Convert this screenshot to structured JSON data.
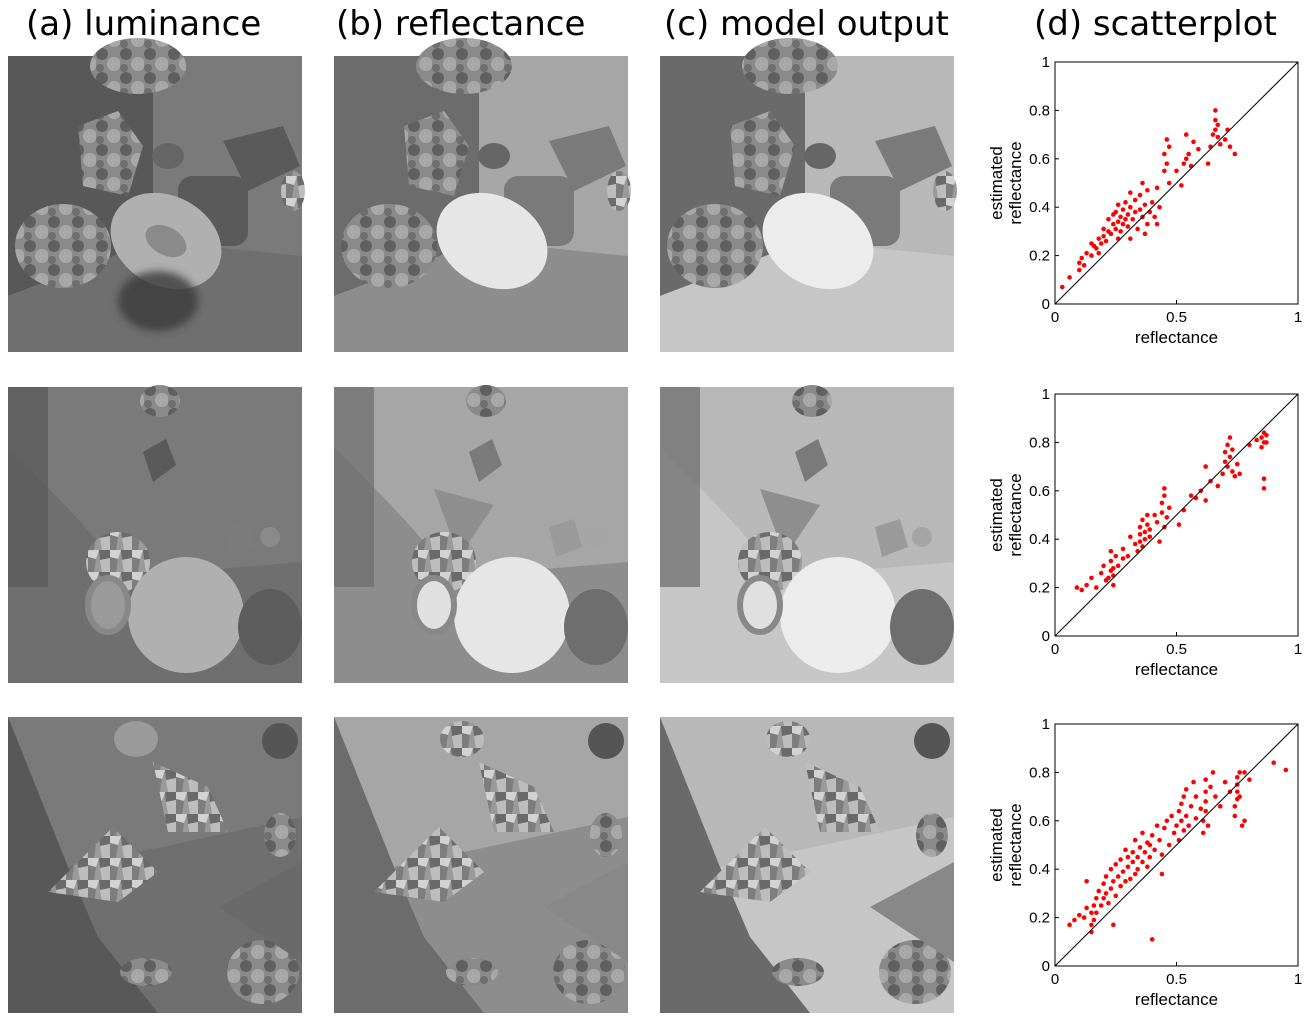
{
  "titles": {
    "a": "(a) luminance",
    "b": "(b) reflectance",
    "c": "(c) model output",
    "d": "(d) scatterplot"
  },
  "colors": {
    "points": "#ff0000",
    "identity_line": "#000000"
  },
  "chart_data": [
    {
      "type": "scatter",
      "xlabel": "reflectance",
      "ylabel": "estimated reflectance",
      "xlim": [
        0,
        1
      ],
      "ylim": [
        0,
        1
      ],
      "xticks": [
        "0",
        "0.5",
        "1"
      ],
      "yticks": [
        "0",
        "0.2",
        "0.4",
        "0.6",
        "0.8",
        "1"
      ],
      "reference_line": "y = x",
      "points": [
        [
          0.03,
          0.07
        ],
        [
          0.06,
          0.11
        ],
        [
          0.1,
          0.14
        ],
        [
          0.1,
          0.17
        ],
        [
          0.11,
          0.19
        ],
        [
          0.12,
          0.16
        ],
        [
          0.13,
          0.21
        ],
        [
          0.15,
          0.2
        ],
        [
          0.16,
          0.24
        ],
        [
          0.17,
          0.23
        ],
        [
          0.18,
          0.27
        ],
        [
          0.19,
          0.25
        ],
        [
          0.2,
          0.28
        ],
        [
          0.2,
          0.31
        ],
        [
          0.21,
          0.26
        ],
        [
          0.22,
          0.3
        ],
        [
          0.22,
          0.35
        ],
        [
          0.23,
          0.29
        ],
        [
          0.24,
          0.33
        ],
        [
          0.24,
          0.37
        ],
        [
          0.25,
          0.31
        ],
        [
          0.25,
          0.38
        ],
        [
          0.26,
          0.34
        ],
        [
          0.26,
          0.41
        ],
        [
          0.27,
          0.3
        ],
        [
          0.27,
          0.36
        ],
        [
          0.28,
          0.39
        ],
        [
          0.28,
          0.33
        ],
        [
          0.29,
          0.42
        ],
        [
          0.29,
          0.35
        ],
        [
          0.3,
          0.37
        ],
        [
          0.3,
          0.32
        ],
        [
          0.31,
          0.4
        ],
        [
          0.31,
          0.27
        ],
        [
          0.32,
          0.35
        ],
        [
          0.33,
          0.38
        ],
        [
          0.33,
          0.43
        ],
        [
          0.34,
          0.31
        ],
        [
          0.35,
          0.39
        ],
        [
          0.35,
          0.45
        ],
        [
          0.36,
          0.36
        ],
        [
          0.37,
          0.41
        ],
        [
          0.38,
          0.33
        ],
        [
          0.38,
          0.47
        ],
        [
          0.39,
          0.38
        ],
        [
          0.4,
          0.42
        ],
        [
          0.41,
          0.36
        ],
        [
          0.42,
          0.48
        ],
        [
          0.43,
          0.4
        ],
        [
          0.45,
          0.55
        ],
        [
          0.45,
          0.62
        ],
        [
          0.46,
          0.58
        ],
        [
          0.46,
          0.68
        ],
        [
          0.47,
          0.65
        ],
        [
          0.47,
          0.5
        ],
        [
          0.5,
          0.55
        ],
        [
          0.52,
          0.49
        ],
        [
          0.53,
          0.58
        ],
        [
          0.54,
          0.6
        ],
        [
          0.54,
          0.7
        ],
        [
          0.55,
          0.62
        ],
        [
          0.56,
          0.57
        ],
        [
          0.57,
          0.67
        ],
        [
          0.59,
          0.64
        ],
        [
          0.63,
          0.58
        ],
        [
          0.64,
          0.65
        ],
        [
          0.65,
          0.7
        ],
        [
          0.66,
          0.72
        ],
        [
          0.66,
          0.76
        ],
        [
          0.66,
          0.8
        ],
        [
          0.67,
          0.69
        ],
        [
          0.67,
          0.74
        ],
        [
          0.68,
          0.66
        ],
        [
          0.7,
          0.68
        ],
        [
          0.71,
          0.72
        ],
        [
          0.72,
          0.65
        ],
        [
          0.74,
          0.62
        ],
        [
          0.18,
          0.21
        ],
        [
          0.15,
          0.25
        ],
        [
          0.31,
          0.46
        ],
        [
          0.37,
          0.29
        ],
        [
          0.42,
          0.33
        ],
        [
          0.26,
          0.27
        ],
        [
          0.36,
          0.5
        ]
      ]
    },
    {
      "type": "scatter",
      "xlabel": "reflectance",
      "ylabel": "estimated reflectance",
      "xlim": [
        0,
        1
      ],
      "ylim": [
        0,
        1
      ],
      "xticks": [
        "0",
        "0.5",
        "1"
      ],
      "yticks": [
        "0",
        "0.2",
        "0.4",
        "0.6",
        "0.8",
        "1"
      ],
      "reference_line": "y = x",
      "points": [
        [
          0.09,
          0.2
        ],
        [
          0.11,
          0.19
        ],
        [
          0.13,
          0.21
        ],
        [
          0.15,
          0.24
        ],
        [
          0.17,
          0.2
        ],
        [
          0.19,
          0.26
        ],
        [
          0.2,
          0.29
        ],
        [
          0.21,
          0.23
        ],
        [
          0.22,
          0.24
        ],
        [
          0.23,
          0.27
        ],
        [
          0.23,
          0.31
        ],
        [
          0.23,
          0.35
        ],
        [
          0.24,
          0.21
        ],
        [
          0.24,
          0.25
        ],
        [
          0.24,
          0.28
        ],
        [
          0.25,
          0.33
        ],
        [
          0.26,
          0.29
        ],
        [
          0.28,
          0.36
        ],
        [
          0.3,
          0.33
        ],
        [
          0.31,
          0.41
        ],
        [
          0.33,
          0.38
        ],
        [
          0.34,
          0.35
        ],
        [
          0.35,
          0.39
        ],
        [
          0.35,
          0.42
        ],
        [
          0.35,
          0.45
        ],
        [
          0.36,
          0.37
        ],
        [
          0.36,
          0.48
        ],
        [
          0.37,
          0.4
        ],
        [
          0.37,
          0.43
        ],
        [
          0.38,
          0.46
        ],
        [
          0.38,
          0.5
        ],
        [
          0.39,
          0.41
        ],
        [
          0.39,
          0.44
        ],
        [
          0.42,
          0.47
        ],
        [
          0.43,
          0.39
        ],
        [
          0.44,
          0.51
        ],
        [
          0.44,
          0.55
        ],
        [
          0.45,
          0.45
        ],
        [
          0.45,
          0.58
        ],
        [
          0.45,
          0.61
        ],
        [
          0.46,
          0.49
        ],
        [
          0.47,
          0.53
        ],
        [
          0.51,
          0.46
        ],
        [
          0.53,
          0.52
        ],
        [
          0.56,
          0.58
        ],
        [
          0.58,
          0.57
        ],
        [
          0.6,
          0.6
        ],
        [
          0.62,
          0.56
        ],
        [
          0.64,
          0.64
        ],
        [
          0.67,
          0.62
        ],
        [
          0.69,
          0.67
        ],
        [
          0.7,
          0.72
        ],
        [
          0.7,
          0.76
        ],
        [
          0.71,
          0.7
        ],
        [
          0.71,
          0.79
        ],
        [
          0.72,
          0.74
        ],
        [
          0.72,
          0.82
        ],
        [
          0.73,
          0.68
        ],
        [
          0.73,
          0.77
        ],
        [
          0.74,
          0.66
        ],
        [
          0.75,
          0.71
        ],
        [
          0.76,
          0.67
        ],
        [
          0.8,
          0.79
        ],
        [
          0.83,
          0.81
        ],
        [
          0.85,
          0.78
        ],
        [
          0.85,
          0.82
        ],
        [
          0.86,
          0.8
        ],
        [
          0.86,
          0.84
        ],
        [
          0.86,
          0.65
        ],
        [
          0.86,
          0.61
        ],
        [
          0.87,
          0.83
        ],
        [
          0.87,
          0.8
        ],
        [
          0.62,
          0.7
        ],
        [
          0.28,
          0.32
        ],
        [
          0.41,
          0.5
        ]
      ]
    },
    {
      "type": "scatter",
      "xlabel": "reflectance",
      "ylabel": "estimated reflectance",
      "xlim": [
        0,
        1
      ],
      "ylim": [
        0,
        1
      ],
      "xticks": [
        "0",
        "0.5",
        "1"
      ],
      "yticks": [
        "0",
        "0.2",
        "0.4",
        "0.6",
        "0.8",
        "1"
      ],
      "reference_line": "y = x",
      "points": [
        [
          0.06,
          0.17
        ],
        [
          0.08,
          0.19
        ],
        [
          0.1,
          0.21
        ],
        [
          0.12,
          0.2
        ],
        [
          0.13,
          0.24
        ],
        [
          0.15,
          0.14
        ],
        [
          0.15,
          0.17
        ],
        [
          0.15,
          0.22
        ],
        [
          0.16,
          0.19
        ],
        [
          0.16,
          0.25
        ],
        [
          0.17,
          0.28
        ],
        [
          0.17,
          0.22
        ],
        [
          0.18,
          0.31
        ],
        [
          0.19,
          0.25
        ],
        [
          0.2,
          0.28
        ],
        [
          0.2,
          0.34
        ],
        [
          0.21,
          0.3
        ],
        [
          0.21,
          0.37
        ],
        [
          0.22,
          0.26
        ],
        [
          0.23,
          0.32
        ],
        [
          0.23,
          0.4
        ],
        [
          0.24,
          0.35
        ],
        [
          0.25,
          0.29
        ],
        [
          0.25,
          0.42
        ],
        [
          0.26,
          0.37
        ],
        [
          0.27,
          0.33
        ],
        [
          0.27,
          0.44
        ],
        [
          0.28,
          0.39
        ],
        [
          0.29,
          0.35
        ],
        [
          0.3,
          0.45
        ],
        [
          0.3,
          0.41
        ],
        [
          0.31,
          0.36
        ],
        [
          0.32,
          0.47
        ],
        [
          0.32,
          0.43
        ],
        [
          0.33,
          0.38
        ],
        [
          0.33,
          0.52
        ],
        [
          0.34,
          0.45
        ],
        [
          0.34,
          0.4
        ],
        [
          0.35,
          0.49
        ],
        [
          0.36,
          0.43
        ],
        [
          0.36,
          0.55
        ],
        [
          0.37,
          0.47
        ],
        [
          0.38,
          0.41
        ],
        [
          0.38,
          0.51
        ],
        [
          0.39,
          0.45
        ],
        [
          0.39,
          0.5
        ],
        [
          0.4,
          0.54
        ],
        [
          0.4,
          0.11
        ],
        [
          0.41,
          0.48
        ],
        [
          0.42,
          0.58
        ],
        [
          0.43,
          0.52
        ],
        [
          0.44,
          0.46
        ],
        [
          0.45,
          0.57
        ],
        [
          0.46,
          0.6
        ],
        [
          0.47,
          0.5
        ],
        [
          0.48,
          0.62
        ],
        [
          0.49,
          0.55
        ],
        [
          0.5,
          0.58
        ],
        [
          0.51,
          0.64
        ],
        [
          0.51,
          0.52
        ],
        [
          0.52,
          0.6
        ],
        [
          0.52,
          0.67
        ],
        [
          0.53,
          0.56
        ],
        [
          0.53,
          0.7
        ],
        [
          0.54,
          0.62
        ],
        [
          0.54,
          0.73
        ],
        [
          0.55,
          0.58
        ],
        [
          0.56,
          0.66
        ],
        [
          0.57,
          0.76
        ],
        [
          0.58,
          0.61
        ],
        [
          0.58,
          0.7
        ],
        [
          0.6,
          0.65
        ],
        [
          0.61,
          0.55
        ],
        [
          0.61,
          0.6
        ],
        [
          0.62,
          0.64
        ],
        [
          0.62,
          0.68
        ],
        [
          0.62,
          0.72
        ],
        [
          0.62,
          0.77
        ],
        [
          0.63,
          0.58
        ],
        [
          0.64,
          0.74
        ],
        [
          0.65,
          0.8
        ],
        [
          0.66,
          0.7
        ],
        [
          0.68,
          0.66
        ],
        [
          0.7,
          0.76
        ],
        [
          0.72,
          0.72
        ],
        [
          0.74,
          0.62
        ],
        [
          0.74,
          0.66
        ],
        [
          0.75,
          0.69
        ],
        [
          0.75,
          0.72
        ],
        [
          0.75,
          0.75
        ],
        [
          0.75,
          0.78
        ],
        [
          0.76,
          0.7
        ],
        [
          0.76,
          0.8
        ],
        [
          0.77,
          0.58
        ],
        [
          0.78,
          0.6
        ],
        [
          0.78,
          0.8
        ],
        [
          0.8,
          0.77
        ],
        [
          0.9,
          0.84
        ],
        [
          0.95,
          0.81
        ],
        [
          0.13,
          0.35
        ],
        [
          0.24,
          0.17
        ],
        [
          0.44,
          0.38
        ],
        [
          0.29,
          0.48
        ]
      ]
    }
  ]
}
